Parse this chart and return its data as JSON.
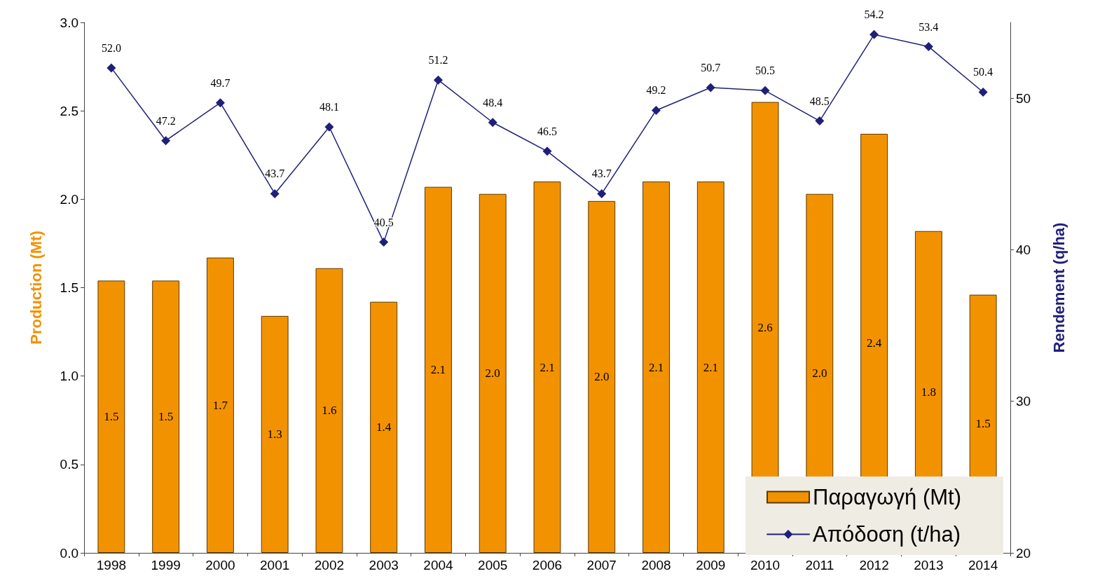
{
  "chart_data": {
    "type": "bar",
    "categories": [
      "1998",
      "1999",
      "2000",
      "2001",
      "2002",
      "2003",
      "2004",
      "2005",
      "2006",
      "2007",
      "2008",
      "2009",
      "2010",
      "2011",
      "2012",
      "2013",
      "2014"
    ],
    "ylabel": "Production (Mt)",
    "y2label": "Rendement (q/ha)",
    "ylim": [
      0,
      3
    ],
    "yticks": [
      {
        "value": 0,
        "label": "0.0"
      },
      {
        "value": 0.5,
        "label": "0.5"
      },
      {
        "value": 1,
        "label": "1.0"
      },
      {
        "value": 1.5,
        "label": "1.5"
      },
      {
        "value": 2,
        "label": "2.0"
      },
      {
        "value": 2.5,
        "label": "2.5"
      },
      {
        "value": 3,
        "label": "3.0"
      }
    ],
    "y2lim": [
      20,
      55
    ],
    "y2ticks": [
      20,
      30,
      40,
      50
    ],
    "legend": "bottom right",
    "grid": false,
    "series": [
      {
        "name": "Παραγωγή (Mt)",
        "color": "#f39200",
        "values": [
          1.54,
          1.54,
          1.67,
          1.34,
          1.61,
          1.42,
          2.07,
          2.03,
          2.1,
          1.99,
          2.1,
          2.1,
          2.55,
          2.03,
          2.37,
          1.82,
          1.46
        ],
        "value_labels": [
          "1.5",
          "1.5",
          "1.7",
          "1.3",
          "1.6",
          "1.4",
          "2.1",
          "2.0",
          "2.1",
          "2.0",
          "2.1",
          "2.1",
          "2.6",
          "2.0",
          "2.4",
          "1.8",
          "1.5"
        ]
      },
      {
        "name": "Απόδοση (t/ha)",
        "type": "line",
        "axis": "y2",
        "color": "#1f1f7a",
        "marker": "diamond",
        "line_style": "solid",
        "values": [
          52.0,
          47.2,
          49.7,
          43.7,
          48.1,
          40.5,
          51.2,
          48.4,
          46.5,
          43.7,
          49.2,
          50.7,
          50.5,
          48.5,
          54.2,
          53.4,
          50.4
        ],
        "value_labels": [
          "52.0",
          "47.2",
          "49.7",
          "43.7",
          "48.1",
          "40.5",
          "51.2",
          "48.4",
          "46.5",
          "43.7",
          "49.2",
          "50.7",
          "50.5",
          "48.5",
          "54.2",
          "53.4",
          "50.4"
        ]
      }
    ]
  }
}
